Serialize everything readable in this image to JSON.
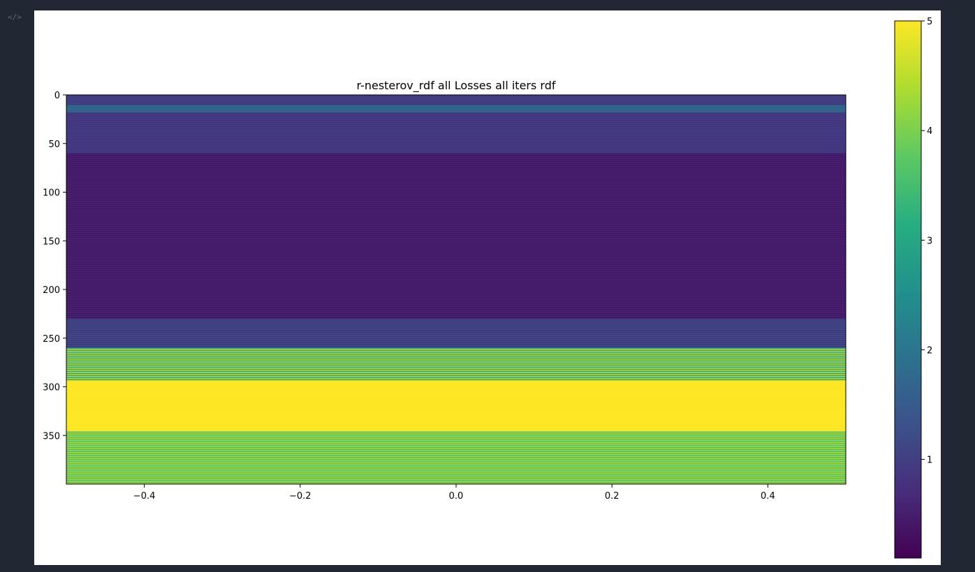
{
  "toolbar": {
    "code_icon": "code-icon"
  },
  "chart_data": {
    "type": "heatmap",
    "title": "r-nesterov_rdf all Losses all iters rdf",
    "xlabel": "",
    "ylabel": "",
    "xlim": [
      -0.5,
      0.5
    ],
    "ylim": [
      0,
      400
    ],
    "y_inverted": true,
    "x_ticks": [
      -0.4,
      -0.2,
      0.0,
      0.2,
      0.4
    ],
    "x_tick_labels": [
      "−0.4",
      "−0.2",
      "0.0",
      "0.2",
      "0.4"
    ],
    "y_ticks": [
      0,
      50,
      100,
      150,
      200,
      250,
      300,
      350
    ],
    "y_tick_labels": [
      "0",
      "50",
      "100",
      "150",
      "200",
      "250",
      "300",
      "350"
    ],
    "colormap": "viridis",
    "colorbar": {
      "range": [
        0.1,
        5.0
      ],
      "ticks": [
        1,
        2,
        3,
        4,
        5
      ],
      "tick_labels": [
        "1",
        "2",
        "3",
        "4",
        "5"
      ]
    },
    "row_bands": [
      {
        "rows": [
          0,
          10
        ],
        "base": 1.1,
        "alt": 0.9
      },
      {
        "rows": [
          10,
          18
        ],
        "base": 1.2,
        "alt": 2.2
      },
      {
        "rows": [
          18,
          60
        ],
        "base": 0.75,
        "alt": 1.05
      },
      {
        "rows": [
          60,
          230
        ],
        "base": 0.35,
        "alt": 0.6
      },
      {
        "rows": [
          230,
          260
        ],
        "base": 0.8,
        "alt": 1.3
      },
      {
        "rows": [
          260,
          294
        ],
        "base": 2.8,
        "alt": 4.6
      },
      {
        "rows": [
          294,
          346
        ],
        "base": 5.0,
        "alt": 5.0
      },
      {
        "rows": [
          346,
          400
        ],
        "base": 3.4,
        "alt": 4.5
      }
    ]
  }
}
